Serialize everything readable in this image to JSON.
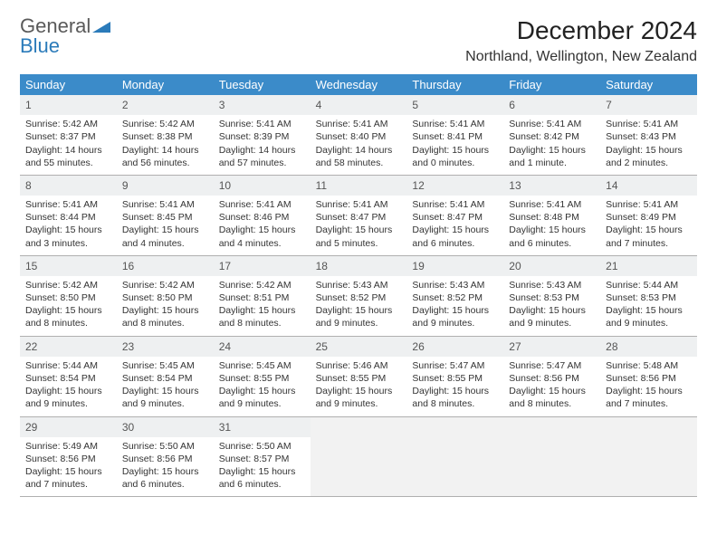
{
  "logo": {
    "line1": "General",
    "line2": "Blue"
  },
  "title": "December 2024",
  "location": "Northland, Wellington, New Zealand",
  "colors": {
    "header_bg": "#3b8bc9",
    "header_text": "#ffffff",
    "daynum_bg": "#eef0f1",
    "empty_bg": "#f2f2f2",
    "border": "#b0b0b0",
    "logo_gray": "#5a5a5a",
    "logo_blue": "#2b7bba"
  },
  "weekdays": [
    "Sunday",
    "Monday",
    "Tuesday",
    "Wednesday",
    "Thursday",
    "Friday",
    "Saturday"
  ],
  "days": [
    {
      "n": "1",
      "sunrise": "Sunrise: 5:42 AM",
      "sunset": "Sunset: 8:37 PM",
      "day1": "Daylight: 14 hours",
      "day2": "and 55 minutes."
    },
    {
      "n": "2",
      "sunrise": "Sunrise: 5:42 AM",
      "sunset": "Sunset: 8:38 PM",
      "day1": "Daylight: 14 hours",
      "day2": "and 56 minutes."
    },
    {
      "n": "3",
      "sunrise": "Sunrise: 5:41 AM",
      "sunset": "Sunset: 8:39 PM",
      "day1": "Daylight: 14 hours",
      "day2": "and 57 minutes."
    },
    {
      "n": "4",
      "sunrise": "Sunrise: 5:41 AM",
      "sunset": "Sunset: 8:40 PM",
      "day1": "Daylight: 14 hours",
      "day2": "and 58 minutes."
    },
    {
      "n": "5",
      "sunrise": "Sunrise: 5:41 AM",
      "sunset": "Sunset: 8:41 PM",
      "day1": "Daylight: 15 hours",
      "day2": "and 0 minutes."
    },
    {
      "n": "6",
      "sunrise": "Sunrise: 5:41 AM",
      "sunset": "Sunset: 8:42 PM",
      "day1": "Daylight: 15 hours",
      "day2": "and 1 minute."
    },
    {
      "n": "7",
      "sunrise": "Sunrise: 5:41 AM",
      "sunset": "Sunset: 8:43 PM",
      "day1": "Daylight: 15 hours",
      "day2": "and 2 minutes."
    },
    {
      "n": "8",
      "sunrise": "Sunrise: 5:41 AM",
      "sunset": "Sunset: 8:44 PM",
      "day1": "Daylight: 15 hours",
      "day2": "and 3 minutes."
    },
    {
      "n": "9",
      "sunrise": "Sunrise: 5:41 AM",
      "sunset": "Sunset: 8:45 PM",
      "day1": "Daylight: 15 hours",
      "day2": "and 4 minutes."
    },
    {
      "n": "10",
      "sunrise": "Sunrise: 5:41 AM",
      "sunset": "Sunset: 8:46 PM",
      "day1": "Daylight: 15 hours",
      "day2": "and 4 minutes."
    },
    {
      "n": "11",
      "sunrise": "Sunrise: 5:41 AM",
      "sunset": "Sunset: 8:47 PM",
      "day1": "Daylight: 15 hours",
      "day2": "and 5 minutes."
    },
    {
      "n": "12",
      "sunrise": "Sunrise: 5:41 AM",
      "sunset": "Sunset: 8:47 PM",
      "day1": "Daylight: 15 hours",
      "day2": "and 6 minutes."
    },
    {
      "n": "13",
      "sunrise": "Sunrise: 5:41 AM",
      "sunset": "Sunset: 8:48 PM",
      "day1": "Daylight: 15 hours",
      "day2": "and 6 minutes."
    },
    {
      "n": "14",
      "sunrise": "Sunrise: 5:41 AM",
      "sunset": "Sunset: 8:49 PM",
      "day1": "Daylight: 15 hours",
      "day2": "and 7 minutes."
    },
    {
      "n": "15",
      "sunrise": "Sunrise: 5:42 AM",
      "sunset": "Sunset: 8:50 PM",
      "day1": "Daylight: 15 hours",
      "day2": "and 8 minutes."
    },
    {
      "n": "16",
      "sunrise": "Sunrise: 5:42 AM",
      "sunset": "Sunset: 8:50 PM",
      "day1": "Daylight: 15 hours",
      "day2": "and 8 minutes."
    },
    {
      "n": "17",
      "sunrise": "Sunrise: 5:42 AM",
      "sunset": "Sunset: 8:51 PM",
      "day1": "Daylight: 15 hours",
      "day2": "and 8 minutes."
    },
    {
      "n": "18",
      "sunrise": "Sunrise: 5:43 AM",
      "sunset": "Sunset: 8:52 PM",
      "day1": "Daylight: 15 hours",
      "day2": "and 9 minutes."
    },
    {
      "n": "19",
      "sunrise": "Sunrise: 5:43 AM",
      "sunset": "Sunset: 8:52 PM",
      "day1": "Daylight: 15 hours",
      "day2": "and 9 minutes."
    },
    {
      "n": "20",
      "sunrise": "Sunrise: 5:43 AM",
      "sunset": "Sunset: 8:53 PM",
      "day1": "Daylight: 15 hours",
      "day2": "and 9 minutes."
    },
    {
      "n": "21",
      "sunrise": "Sunrise: 5:44 AM",
      "sunset": "Sunset: 8:53 PM",
      "day1": "Daylight: 15 hours",
      "day2": "and 9 minutes."
    },
    {
      "n": "22",
      "sunrise": "Sunrise: 5:44 AM",
      "sunset": "Sunset: 8:54 PM",
      "day1": "Daylight: 15 hours",
      "day2": "and 9 minutes."
    },
    {
      "n": "23",
      "sunrise": "Sunrise: 5:45 AM",
      "sunset": "Sunset: 8:54 PM",
      "day1": "Daylight: 15 hours",
      "day2": "and 9 minutes."
    },
    {
      "n": "24",
      "sunrise": "Sunrise: 5:45 AM",
      "sunset": "Sunset: 8:55 PM",
      "day1": "Daylight: 15 hours",
      "day2": "and 9 minutes."
    },
    {
      "n": "25",
      "sunrise": "Sunrise: 5:46 AM",
      "sunset": "Sunset: 8:55 PM",
      "day1": "Daylight: 15 hours",
      "day2": "and 9 minutes."
    },
    {
      "n": "26",
      "sunrise": "Sunrise: 5:47 AM",
      "sunset": "Sunset: 8:55 PM",
      "day1": "Daylight: 15 hours",
      "day2": "and 8 minutes."
    },
    {
      "n": "27",
      "sunrise": "Sunrise: 5:47 AM",
      "sunset": "Sunset: 8:56 PM",
      "day1": "Daylight: 15 hours",
      "day2": "and 8 minutes."
    },
    {
      "n": "28",
      "sunrise": "Sunrise: 5:48 AM",
      "sunset": "Sunset: 8:56 PM",
      "day1": "Daylight: 15 hours",
      "day2": "and 7 minutes."
    },
    {
      "n": "29",
      "sunrise": "Sunrise: 5:49 AM",
      "sunset": "Sunset: 8:56 PM",
      "day1": "Daylight: 15 hours",
      "day2": "and 7 minutes."
    },
    {
      "n": "30",
      "sunrise": "Sunrise: 5:50 AM",
      "sunset": "Sunset: 8:56 PM",
      "day1": "Daylight: 15 hours",
      "day2": "and 6 minutes."
    },
    {
      "n": "31",
      "sunrise": "Sunrise: 5:50 AM",
      "sunset": "Sunset: 8:57 PM",
      "day1": "Daylight: 15 hours",
      "day2": "and 6 minutes."
    }
  ],
  "trailing_empty": 4
}
